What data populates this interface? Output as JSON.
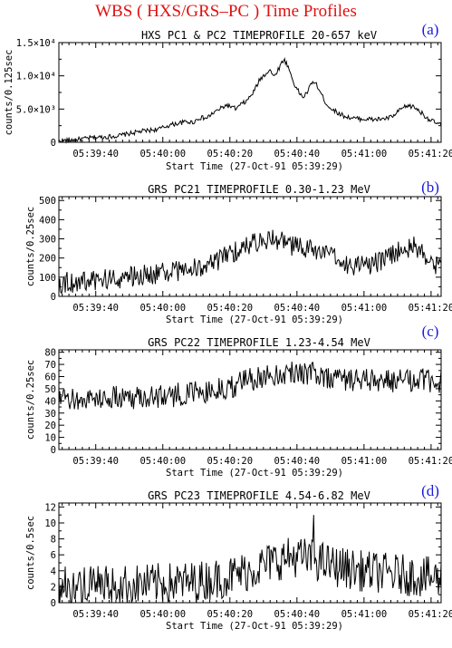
{
  "header": {
    "title": "WBS ( HXS/GRS–PC ) Time Profiles"
  },
  "chart_data": [
    {
      "type": "line",
      "panel": "(a)",
      "title": "HXS PC1 & PC2 TIMEPROFILE  20-657 keV",
      "xlabel": "Start Time (27-Oct-91 05:39:29)",
      "ylabel": "counts/0.125sec",
      "xlim": [
        0,
        114
      ],
      "ylim": [
        0,
        15000
      ],
      "x_ticks": [
        11,
        31,
        51,
        71,
        91,
        111
      ],
      "x_tick_labels": [
        "05:39:40",
        "05:40:00",
        "05:40:20",
        "05:40:40",
        "05:41:00",
        "05:41:20"
      ],
      "y_ticks": [
        0,
        5000,
        10000,
        15000
      ],
      "y_tick_labels": [
        "0",
        "5.0×10³",
        "1.0×10⁴",
        "1.5×10⁴"
      ],
      "series": [
        {
          "points": [
            [
              0,
              200
            ],
            [
              3,
              300
            ],
            [
              7,
              500
            ],
            [
              10,
              700
            ],
            [
              14,
              800
            ],
            [
              18,
              1000
            ],
            [
              22,
              1400
            ],
            [
              24,
              1600
            ],
            [
              27,
              1800
            ],
            [
              30,
              2000
            ],
            [
              33,
              2600
            ],
            [
              36,
              2900
            ],
            [
              38,
              3100
            ],
            [
              40,
              3000
            ],
            [
              42,
              3700
            ],
            [
              44,
              3600
            ],
            [
              46,
              4400
            ],
            [
              48,
              5000
            ],
            [
              50,
              5600
            ],
            [
              52,
              5200
            ],
            [
              53,
              5000
            ],
            [
              54,
              5600
            ],
            [
              56,
              6200
            ],
            [
              58,
              7500
            ],
            [
              60,
              9500
            ],
            [
              62,
              10500
            ],
            [
              63,
              11000
            ],
            [
              64,
              9800
            ],
            [
              65,
              10600
            ],
            [
              66,
              11500
            ],
            [
              67,
              12500
            ],
            [
              68,
              11800
            ],
            [
              69,
              10500
            ],
            [
              70,
              9000
            ],
            [
              71,
              8000
            ],
            [
              72,
              7200
            ],
            [
              73,
              6800
            ],
            [
              74,
              7500
            ],
            [
              75,
              8500
            ],
            [
              76,
              9200
            ],
            [
              77,
              8500
            ],
            [
              78,
              7500
            ],
            [
              79,
              6500
            ],
            [
              80,
              5600
            ],
            [
              82,
              4800
            ],
            [
              84,
              4200
            ],
            [
              86,
              3800
            ],
            [
              88,
              3600
            ],
            [
              90,
              3500
            ],
            [
              92,
              3500
            ],
            [
              94,
              3400
            ],
            [
              96,
              3500
            ],
            [
              98,
              3600
            ],
            [
              100,
              4000
            ],
            [
              102,
              5000
            ],
            [
              104,
              5500
            ],
            [
              106,
              5300
            ],
            [
              108,
              4500
            ],
            [
              110,
              3600
            ],
            [
              112,
              3000
            ],
            [
              114,
              2600
            ]
          ],
          "noise": 350
        }
      ]
    },
    {
      "type": "line",
      "panel": "(b)",
      "title": "GRS PC21 TIMEPROFILE  0.30-1.23 MeV",
      "xlabel": "Start Time (27-Oct-91 05:39:29)",
      "ylabel": "counts/0.25sec",
      "xlim": [
        0,
        114
      ],
      "ylim": [
        0,
        520
      ],
      "x_ticks": [
        11,
        31,
        51,
        71,
        91,
        111
      ],
      "x_tick_labels": [
        "05:39:40",
        "05:40:00",
        "05:40:20",
        "05:40:40",
        "05:41:00",
        "05:41:20"
      ],
      "y_ticks": [
        0,
        100,
        200,
        300,
        400,
        500
      ],
      "y_tick_labels": [
        "0",
        "100",
        "200",
        "300",
        "400",
        "500"
      ],
      "series": [
        {
          "points": [
            [
              0,
              70
            ],
            [
              10,
              80
            ],
            [
              20,
              100
            ],
            [
              30,
              120
            ],
            [
              38,
              140
            ],
            [
              45,
              160
            ],
            [
              50,
              210
            ],
            [
              54,
              250
            ],
            [
              58,
              280
            ],
            [
              62,
              300
            ],
            [
              66,
              290
            ],
            [
              70,
              260
            ],
            [
              74,
              250
            ],
            [
              78,
              230
            ],
            [
              82,
              200
            ],
            [
              86,
              170
            ],
            [
              90,
              160
            ],
            [
              94,
              170
            ],
            [
              98,
              200
            ],
            [
              102,
              250
            ],
            [
              106,
              260
            ],
            [
              110,
              200
            ],
            [
              114,
              150
            ]
          ],
          "noise": 55
        }
      ]
    },
    {
      "type": "line",
      "panel": "(c)",
      "title": "GRS PC22 TIMEPROFILE  1.23-4.54 MeV",
      "xlabel": "Start Time (27-Oct-91 05:39:29)",
      "ylabel": "counts/0.25sec",
      "xlim": [
        0,
        114
      ],
      "ylim": [
        0,
        82
      ],
      "x_ticks": [
        11,
        31,
        51,
        71,
        91,
        111
      ],
      "x_tick_labels": [
        "05:39:40",
        "05:40:00",
        "05:40:20",
        "05:40:40",
        "05:41:00",
        "05:41:20"
      ],
      "y_ticks": [
        0,
        10,
        20,
        30,
        40,
        50,
        60,
        70,
        80
      ],
      "y_tick_labels": [
        "0",
        "10",
        "20",
        "30",
        "40",
        "50",
        "60",
        "70",
        "80"
      ],
      "series": [
        {
          "points": [
            [
              0,
              40
            ],
            [
              10,
              42
            ],
            [
              20,
              43
            ],
            [
              30,
              44
            ],
            [
              40,
              46
            ],
            [
              50,
              50
            ],
            [
              55,
              56
            ],
            [
              60,
              60
            ],
            [
              66,
              63
            ],
            [
              72,
              64
            ],
            [
              80,
              60
            ],
            [
              90,
              57
            ],
            [
              100,
              56
            ],
            [
              108,
              57
            ],
            [
              114,
              55
            ]
          ],
          "noise": 10
        }
      ]
    },
    {
      "type": "line",
      "panel": "(d)",
      "title": "GRS PC23 TIMEPROFILE  4.54-6.82 MeV",
      "xlabel": "Start Time (27-Oct-91 05:39:29)",
      "ylabel": "counts/0.5sec",
      "xlim": [
        0,
        114
      ],
      "ylim": [
        0,
        12.5
      ],
      "x_ticks": [
        11,
        31,
        51,
        71,
        91,
        111
      ],
      "x_tick_labels": [
        "05:39:40",
        "05:40:00",
        "05:40:20",
        "05:40:40",
        "05:41:00",
        "05:41:20"
      ],
      "y_ticks": [
        0,
        2,
        4,
        6,
        8,
        10,
        12
      ],
      "y_tick_labels": [
        "0",
        "2",
        "4",
        "6",
        "8",
        "10",
        "12"
      ],
      "series": [
        {
          "points": [
            [
              0,
              2
            ],
            [
              20,
              2.2
            ],
            [
              40,
              2.6
            ],
            [
              50,
              3.2
            ],
            [
              58,
              4.2
            ],
            [
              64,
              5.2
            ],
            [
              70,
              5.8
            ],
            [
              76,
              5.4
            ],
            [
              82,
              4.6
            ],
            [
              90,
              4
            ],
            [
              100,
              3.6
            ],
            [
              110,
              3.2
            ],
            [
              114,
              3
            ]
          ],
          "noise": 2.6,
          "spikes": [
            [
              76,
              11
            ]
          ]
        }
      ]
    }
  ]
}
